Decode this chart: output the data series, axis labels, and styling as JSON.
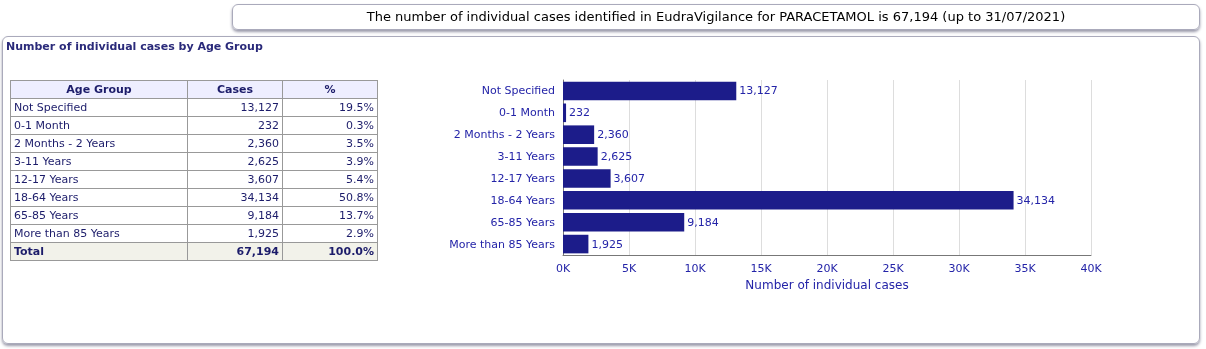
{
  "chart_data": [
    {
      "type": "other",
      "title": "The number of individual cases identified in EudraVigilance for PARACETAMOL is 67,194 (up to 31/07/2021)",
      "subtitle": "Number of individual cases by Age Group",
      "xlabel": "Age Group",
      "categories": [
        "Not Specified",
        "0-1 Month",
        "2 Months - 2 Years",
        "3-11 Years",
        "12-17 Years",
        "18-64 Years",
        "65-85 Years",
        "More than 85 Years"
      ],
      "annotations": [
        "Cases",
        "%",
        "13,127",
        "19.5%",
        "232",
        "0.3%",
        "2,360",
        "3.5%",
        "2,625",
        "3.9%",
        "3,607",
        "5.4%",
        "34,134",
        "50.8%",
        "9,184",
        "13.7%",
        "1,925",
        "2.9%",
        "Total",
        "67,194",
        "100.0%"
      ]
    },
    {
      "type": "bar",
      "orientation": "horizontal",
      "xlabel": "Number of individual cases",
      "categories": [
        "Not Specified",
        "0-1 Month",
        "2 Months - 2 Years",
        "3-11 Years",
        "12-17 Years",
        "18-64 Years",
        "65-85 Years",
        "More than 85 Years"
      ],
      "values": [
        13127,
        232,
        2360,
        2625,
        3607,
        34134,
        9184,
        1925
      ],
      "value_labels": [
        "13,127",
        "232",
        "2,360",
        "2,625",
        "3,607",
        "34,134",
        "9,184",
        "1,925"
      ],
      "color": "#1c1c8a",
      "xlim": [
        0,
        40000
      ],
      "xticks": [
        {
          "value": 0,
          "label": "0K"
        },
        {
          "value": 5000,
          "label": "5K"
        },
        {
          "value": 10000,
          "label": "10K"
        },
        {
          "value": 15000,
          "label": "15K"
        },
        {
          "value": 20000,
          "label": "20K"
        },
        {
          "value": 25000,
          "label": "25K"
        },
        {
          "value": 30000,
          "label": "30K"
        },
        {
          "value": 35000,
          "label": "35K"
        },
        {
          "value": 40000,
          "label": "40K"
        }
      ],
      "grid": "x"
    }
  ]
}
